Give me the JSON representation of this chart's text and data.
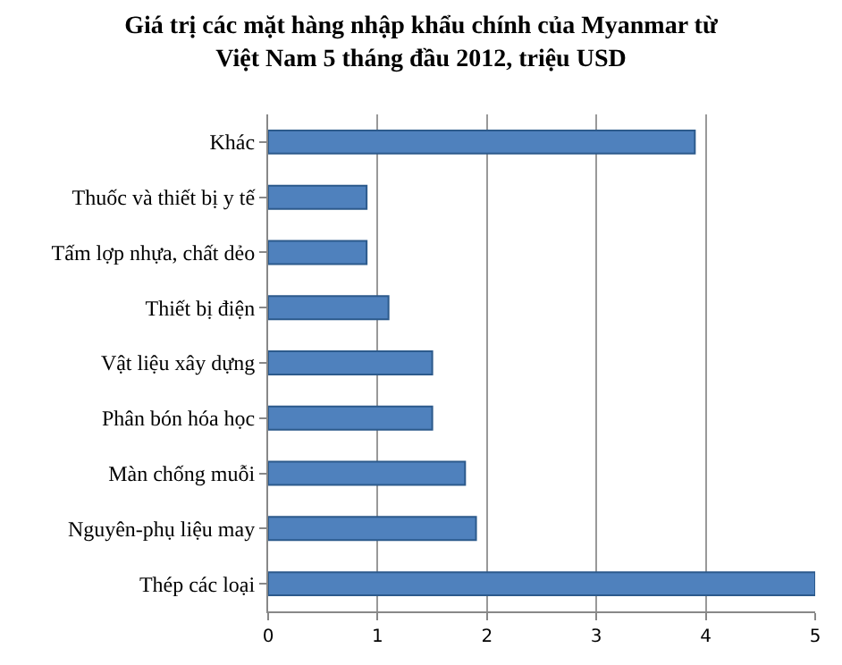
{
  "chart_data": {
    "type": "bar",
    "orientation": "horizontal",
    "title": "Giá trị các mặt hàng nhập khẩu chính của Myanmar từ Việt Nam 5 tháng đầu 2012, triệu USD",
    "categories": [
      "Khác",
      "Thuốc và thiết bị y tế",
      "Tấm lợp nhựa, chất dẻo",
      "Thiết bị điện",
      "Vật liệu xây dựng",
      "Phân bón hóa học",
      "Màn chống muỗi",
      "Nguyên-phụ liệu may",
      "Thép các loại"
    ],
    "values": [
      3.9,
      0.9,
      0.9,
      1.1,
      1.5,
      1.5,
      1.8,
      1.9,
      5.0
    ],
    "color": "#4f81bd",
    "xlim": [
      0,
      5
    ],
    "xticks": [
      0,
      1,
      2,
      3,
      4,
      5
    ],
    "grid": "x"
  }
}
